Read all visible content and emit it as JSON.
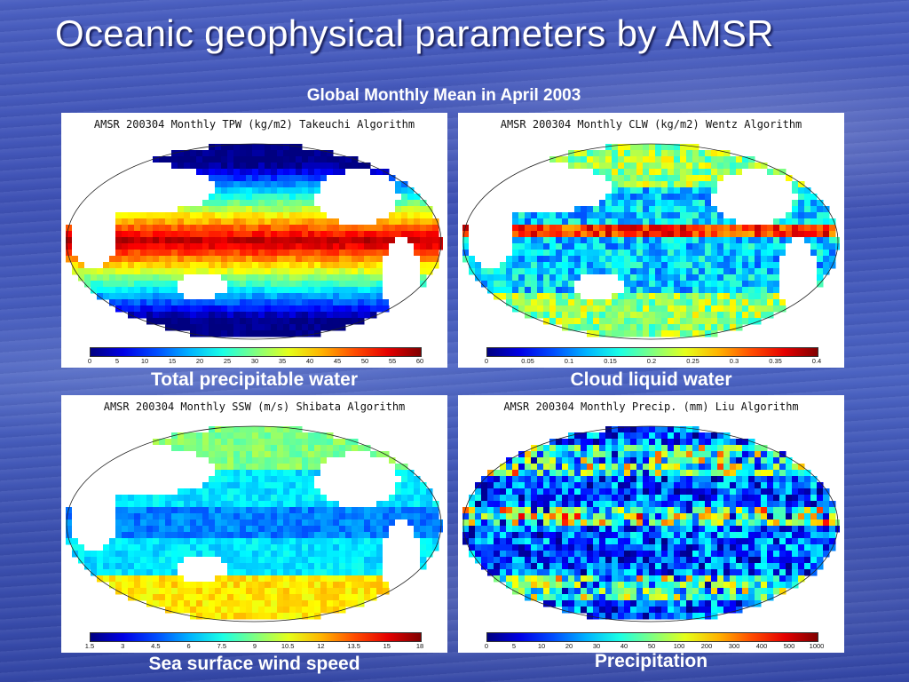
{
  "slide": {
    "title": "Oceanic geophysical parameters by AMSR",
    "subtitle": "Global Monthly Mean in April 2003"
  },
  "panels": [
    {
      "header": "AMSR 200304 Monthly TPW (kg/m2) Takeuchi Algorithm",
      "caption": "Total precipitable water",
      "colorbar_ticks": [
        "0",
        "5",
        "10",
        "15",
        "20",
        "25",
        "30",
        "35",
        "40",
        "45",
        "50",
        "55",
        "60"
      ],
      "colormap": "jet",
      "pattern": "tpw"
    },
    {
      "header": "AMSR 200304 Monthly CLW (kg/m2) Wentz Algorithm",
      "caption": "Cloud liquid water",
      "colorbar_ticks": [
        "0",
        "0.05",
        "0.1",
        "0.15",
        "0.2",
        "0.25",
        "0.3",
        "0.35",
        "0.4"
      ],
      "colormap": "jet",
      "pattern": "clw"
    },
    {
      "header": "AMSR 200304 Monthly SSW (m/s) Shibata Algorithm",
      "caption": "Sea surface wind speed",
      "colorbar_ticks": [
        "1.5",
        "3",
        "4.5",
        "6",
        "7.5",
        "9",
        "10.5",
        "12",
        "13.5",
        "15",
        "18"
      ],
      "colormap": "jet",
      "pattern": "ssw"
    },
    {
      "header": "AMSR 200304 Monthly Precip. (mm) Liu Algorithm",
      "caption": "Precipitation",
      "colorbar_ticks": [
        "0",
        "5",
        "10",
        "20",
        "30",
        "40",
        "50",
        "100",
        "200",
        "300",
        "400",
        "500",
        "1000"
      ],
      "colormap": "jet",
      "pattern": "precip"
    }
  ]
}
